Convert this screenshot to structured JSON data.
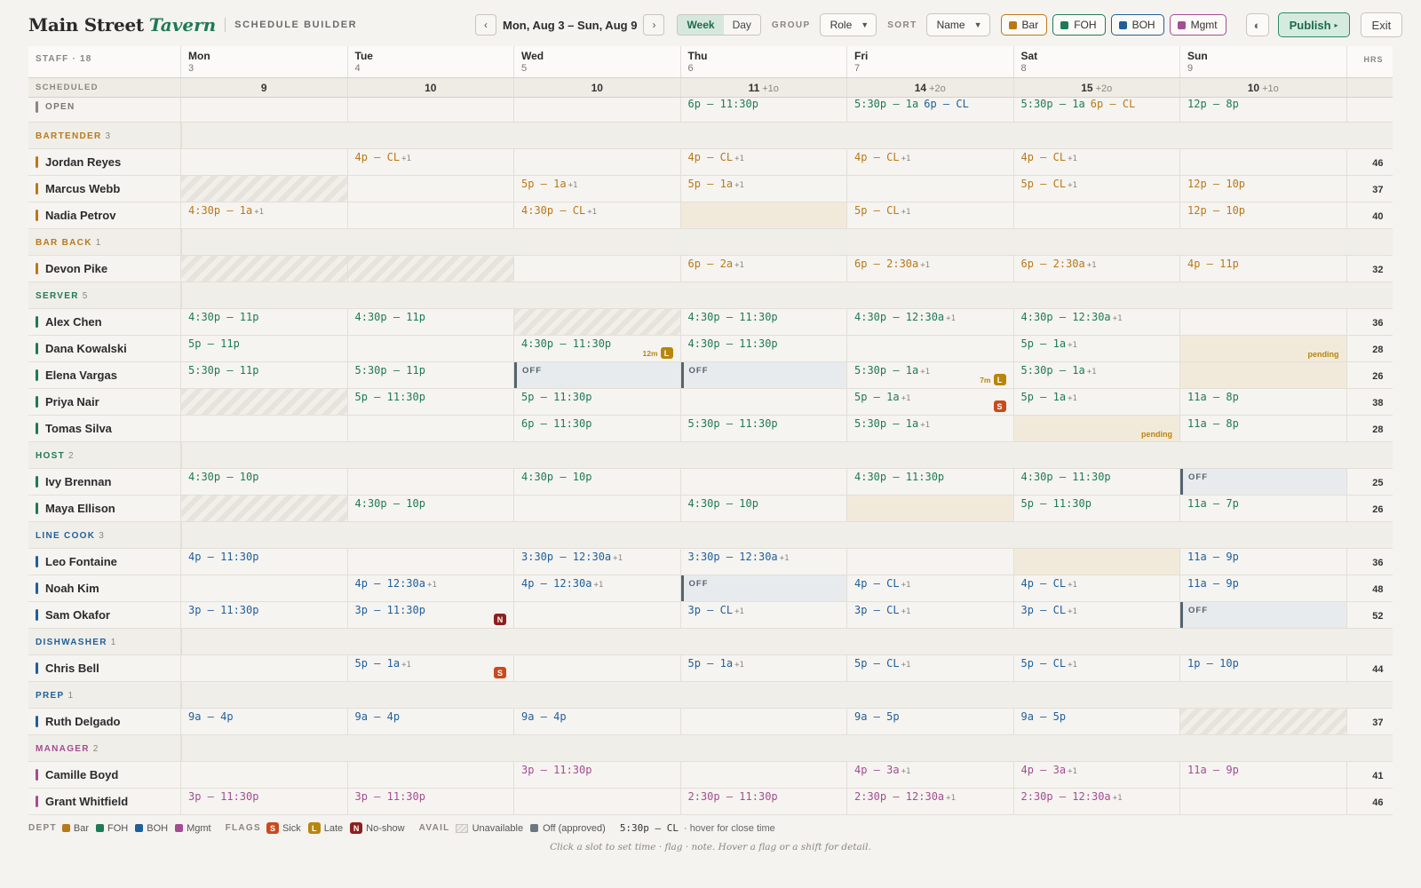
{
  "brand": {
    "name": "Main Street",
    "accent": "Tavern",
    "subtitle": "SCHEDULE BUILDER"
  },
  "toolbar": {
    "prev_icon": "‹",
    "next_icon": "›",
    "date_range": "Mon, Aug 3 – Sun, Aug 9",
    "view_week": "Week",
    "view_day": "Day",
    "group_label": "GROUP",
    "group_value": "Role",
    "sort_label": "SORT",
    "sort_value": "Name",
    "chips": [
      {
        "label": "Bar",
        "color": "#b8791a"
      },
      {
        "label": "FOH",
        "color": "#1f7a56"
      },
      {
        "label": "BOH",
        "color": "#1f5f9a"
      },
      {
        "label": "Mgmt",
        "color": "#a34d92"
      }
    ],
    "theme_icon": "◐",
    "publish_label": "Publish",
    "publish_icon": "▸",
    "exit_label": "Exit"
  },
  "colors": {
    "bar": "#b8791a",
    "foh": "#1f7a56",
    "boh": "#1f5f9a",
    "mgmt": "#a34d92",
    "open": "#8a8680"
  },
  "header": {
    "staff_label": "STAFF · 18",
    "hrs_label": "HRS",
    "days": [
      {
        "name": "Mon",
        "num": "3"
      },
      {
        "name": "Tue",
        "num": "4"
      },
      {
        "name": "Wed",
        "num": "5"
      },
      {
        "name": "Thu",
        "num": "6"
      },
      {
        "name": "Fri",
        "num": "7"
      },
      {
        "name": "Sat",
        "num": "8"
      },
      {
        "name": "Sun",
        "num": "9"
      }
    ]
  },
  "scheduled": {
    "label": "SCHEDULED",
    "values": [
      {
        "count": "9",
        "extra": ""
      },
      {
        "count": "10",
        "extra": ""
      },
      {
        "count": "10",
        "extra": ""
      },
      {
        "count": "11",
        "extra": "+1o"
      },
      {
        "count": "14",
        "extra": "+2o"
      },
      {
        "count": "15",
        "extra": "+2o"
      },
      {
        "count": "10",
        "extra": "+1o"
      }
    ]
  },
  "open_row": {
    "label": "OPEN",
    "cells": [
      null,
      null,
      null,
      [
        {
          "text": "6p – 11:30p",
          "dept": "foh"
        }
      ],
      [
        {
          "text": "5:30p – 1a",
          "dept": "foh"
        },
        {
          "text": "6p – CL",
          "dept": "boh"
        }
      ],
      [
        {
          "text": "5:30p – 1a",
          "dept": "foh"
        },
        {
          "text": "6p – CL",
          "dept": "bar"
        }
      ],
      [
        {
          "text": "12p – 8p",
          "dept": "foh"
        }
      ]
    ]
  },
  "groups": [
    {
      "label": "BARTENDER",
      "count": "3",
      "dept": "bar",
      "employees": [
        {
          "name": "Jordan Reyes",
          "hrs": "46",
          "cells": [
            null,
            {
              "t": "4p – CL",
              "n": "+1"
            },
            null,
            {
              "t": "4p – CL",
              "n": "+1"
            },
            {
              "t": "4p – CL",
              "n": "+1"
            },
            {
              "t": "4p – CL",
              "n": "+1"
            },
            null
          ]
        },
        {
          "name": "Marcus Webb",
          "hrs": "37",
          "cells": [
            {
              "u": true
            },
            null,
            {
              "t": "5p – 1a",
              "n": "+1"
            },
            {
              "t": "5p – 1a",
              "n": "+1"
            },
            null,
            {
              "t": "5p – CL",
              "n": "+1"
            },
            {
              "t": "12p – 10p"
            }
          ]
        },
        {
          "name": "Nadia Petrov",
          "hrs": "40",
          "cells": [
            {
              "t": "4:30p – 1a",
              "n": "+1"
            },
            null,
            {
              "t": "4:30p – CL",
              "n": "+1"
            },
            {
              "p": true
            },
            {
              "t": "5p – CL",
              "n": "+1"
            },
            null,
            {
              "t": "12p – 10p"
            }
          ]
        }
      ]
    },
    {
      "label": "BAR BACK",
      "count": "1",
      "dept": "bar",
      "employees": [
        {
          "name": "Devon Pike",
          "hrs": "32",
          "cells": [
            {
              "u": true
            },
            {
              "u": true
            },
            null,
            {
              "t": "6p – 2a",
              "n": "+1"
            },
            {
              "t": "6p – 2:30a",
              "n": "+1"
            },
            {
              "t": "6p – 2:30a",
              "n": "+1"
            },
            {
              "t": "4p – 11p"
            }
          ]
        }
      ]
    },
    {
      "label": "SERVER",
      "count": "5",
      "dept": "foh",
      "employees": [
        {
          "name": "Alex Chen",
          "hrs": "36",
          "cells": [
            {
              "t": "4:30p – 11p"
            },
            {
              "t": "4:30p – 11p"
            },
            {
              "u": true
            },
            {
              "t": "4:30p – 11:30p"
            },
            {
              "t": "4:30p – 12:30a",
              "n": "+1"
            },
            {
              "t": "4:30p – 12:30a",
              "n": "+1"
            },
            null
          ]
        },
        {
          "name": "Dana Kowalski",
          "hrs": "28",
          "cells": [
            {
              "t": "5p – 11p"
            },
            null,
            {
              "t": "4:30p – 11:30p",
              "f": "L",
              "m": "12m"
            },
            {
              "t": "4:30p – 11:30p"
            },
            null,
            {
              "t": "5p – 1a",
              "n": "+1"
            },
            {
              "p": true,
              "pt": "pending"
            }
          ]
        },
        {
          "name": "Elena Vargas",
          "hrs": "26",
          "cells": [
            {
              "t": "5:30p – 11p"
            },
            {
              "t": "5:30p – 11p"
            },
            {
              "o": "OFF"
            },
            {
              "o": "OFF"
            },
            {
              "t": "5:30p – 1a",
              "n": "+1",
              "f": "L",
              "m": "7m"
            },
            {
              "t": "5:30p – 1a",
              "n": "+1"
            },
            {
              "p": true
            }
          ]
        },
        {
          "name": "Priya Nair",
          "hrs": "38",
          "cells": [
            {
              "u": true
            },
            {
              "t": "5p – 11:30p"
            },
            {
              "t": "5p – 11:30p"
            },
            null,
            {
              "t": "5p – 1a",
              "n": "+1",
              "f": "S"
            },
            {
              "t": "5p – 1a",
              "n": "+1"
            },
            {
              "t": "11a – 8p"
            }
          ]
        },
        {
          "name": "Tomas Silva",
          "hrs": "28",
          "cells": [
            null,
            null,
            {
              "t": "6p – 11:30p"
            },
            {
              "t": "5:30p – 11:30p"
            },
            {
              "t": "5:30p – 1a",
              "n": "+1"
            },
            {
              "p": true,
              "pt": "pending"
            },
            {
              "t": "11a – 8p"
            }
          ]
        }
      ]
    },
    {
      "label": "HOST",
      "count": "2",
      "dept": "foh",
      "employees": [
        {
          "name": "Ivy Brennan",
          "hrs": "25",
          "cells": [
            {
              "t": "4:30p – 10p"
            },
            null,
            {
              "t": "4:30p – 10p"
            },
            null,
            {
              "t": "4:30p – 11:30p"
            },
            {
              "t": "4:30p – 11:30p"
            },
            {
              "o": "OFF"
            }
          ]
        },
        {
          "name": "Maya Ellison",
          "hrs": "26",
          "cells": [
            {
              "u": true
            },
            {
              "t": "4:30p – 10p"
            },
            null,
            {
              "t": "4:30p – 10p"
            },
            {
              "p": true
            },
            {
              "t": "5p – 11:30p"
            },
            {
              "t": "11a – 7p"
            }
          ]
        }
      ]
    },
    {
      "label": "LINE COOK",
      "count": "3",
      "dept": "boh",
      "employees": [
        {
          "name": "Leo Fontaine",
          "hrs": "36",
          "cells": [
            {
              "t": "4p – 11:30p"
            },
            null,
            {
              "t": "3:30p – 12:30a",
              "n": "+1"
            },
            {
              "t": "3:30p – 12:30a",
              "n": "+1"
            },
            null,
            {
              "p": true
            },
            {
              "t": "11a – 9p"
            }
          ]
        },
        {
          "name": "Noah Kim",
          "hrs": "48",
          "cells": [
            null,
            {
              "t": "4p – 12:30a",
              "n": "+1"
            },
            {
              "t": "4p – 12:30a",
              "n": "+1"
            },
            {
              "o": "OFF"
            },
            {
              "t": "4p – CL",
              "n": "+1"
            },
            {
              "t": "4p – CL",
              "n": "+1"
            },
            {
              "t": "11a – 9p"
            }
          ]
        },
        {
          "name": "Sam Okafor",
          "hrs": "52",
          "cells": [
            {
              "t": "3p – 11:30p"
            },
            {
              "t": "3p – 11:30p",
              "f": "N"
            },
            null,
            {
              "t": "3p – CL",
              "n": "+1"
            },
            {
              "t": "3p – CL",
              "n": "+1"
            },
            {
              "t": "3p – CL",
              "n": "+1"
            },
            {
              "o": "OFF"
            }
          ]
        }
      ]
    },
    {
      "label": "DISHWASHER",
      "count": "1",
      "dept": "boh",
      "employees": [
        {
          "name": "Chris Bell",
          "hrs": "44",
          "cells": [
            null,
            {
              "t": "5p – 1a",
              "n": "+1",
              "f": "S"
            },
            null,
            {
              "t": "5p – 1a",
              "n": "+1"
            },
            {
              "t": "5p – CL",
              "n": "+1"
            },
            {
              "t": "5p – CL",
              "n": "+1"
            },
            {
              "t": "1p – 10p"
            }
          ]
        }
      ]
    },
    {
      "label": "PREP",
      "count": "1",
      "dept": "boh",
      "employees": [
        {
          "name": "Ruth Delgado",
          "hrs": "37",
          "cells": [
            {
              "t": "9a – 4p"
            },
            {
              "t": "9a – 4p"
            },
            {
              "t": "9a – 4p"
            },
            null,
            {
              "t": "9a – 5p"
            },
            {
              "t": "9a – 5p"
            },
            {
              "u": true
            }
          ]
        }
      ]
    },
    {
      "label": "MANAGER",
      "count": "2",
      "dept": "mgmt",
      "employees": [
        {
          "name": "Camille Boyd",
          "hrs": "41",
          "cells": [
            null,
            null,
            {
              "t": "3p – 11:30p"
            },
            null,
            {
              "t": "4p – 3a",
              "n": "+1"
            },
            {
              "t": "4p – 3a",
              "n": "+1"
            },
            {
              "t": "11a – 9p"
            }
          ]
        },
        {
          "name": "Grant Whitfield",
          "hrs": "46",
          "cells": [
            {
              "t": "3p – 11:30p"
            },
            {
              "t": "3p – 11:30p"
            },
            null,
            {
              "t": "2:30p – 11:30p"
            },
            {
              "t": "2:30p – 12:30a",
              "n": "+1"
            },
            {
              "t": "2:30p – 12:30a",
              "n": "+1"
            },
            null
          ]
        }
      ]
    }
  ],
  "legend": {
    "dept_label": "DEPT",
    "depts": [
      {
        "label": "Bar",
        "color": "#b8791a"
      },
      {
        "label": "FOH",
        "color": "#1f7a56"
      },
      {
        "label": "BOH",
        "color": "#1f5f9a"
      },
      {
        "label": "Mgmt",
        "color": "#a34d92"
      }
    ],
    "flags_label": "FLAGS",
    "flags": [
      {
        "code": "S",
        "label": "Sick",
        "color": "#c84b1e"
      },
      {
        "code": "L",
        "label": "Late",
        "color": "#b8860b"
      },
      {
        "code": "N",
        "label": "No-show",
        "color": "#8e1f1f"
      }
    ],
    "avail_label": "AVAIL",
    "unavailable": "Unavailable",
    "off_approved": "Off (approved)",
    "close_example": "5:30p – CL",
    "close_note": "· hover for close time"
  },
  "hint": "Click a slot to set time · flag · note. Hover a flag or a shift for detail."
}
